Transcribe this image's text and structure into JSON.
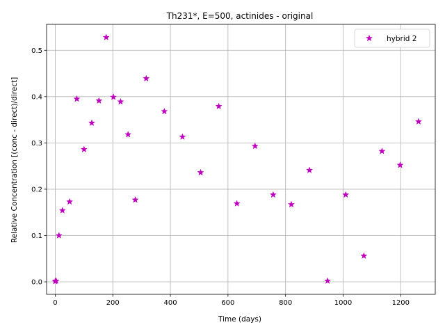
{
  "chart_data": {
    "type": "scatter",
    "title": "Th231*, E=500, actinides - original",
    "xlabel": "Time (days)",
    "ylabel": "Relative Concentration [(conc - direct)/direct]",
    "xlim": [
      -30,
      1320
    ],
    "ylim": [
      -0.027,
      0.556
    ],
    "xticks": [
      0,
      200,
      400,
      600,
      800,
      1000,
      1200
    ],
    "yticks": [
      0.0,
      0.1,
      0.2,
      0.3,
      0.4,
      0.5
    ],
    "xtick_labels": [
      "0",
      "200",
      "400",
      "600",
      "800",
      "1000",
      "1200"
    ],
    "ytick_labels": [
      "0.0",
      "0.1",
      "0.2",
      "0.3",
      "0.4",
      "0.5"
    ],
    "grid": true,
    "legend_position": "top-right",
    "series": [
      {
        "name": "hybrid 2",
        "color": "#bf00bf",
        "marker": "star",
        "x": [
          0,
          3,
          13,
          25,
          50,
          75,
          100,
          127,
          152,
          177,
          202,
          227,
          253,
          278,
          316,
          379,
          442,
          505,
          568,
          631,
          694,
          757,
          820,
          883,
          946,
          1009,
          1072,
          1135,
          1198,
          1262
        ],
        "y": [
          0.001,
          0.002,
          0.1,
          0.154,
          0.173,
          0.395,
          0.286,
          0.343,
          0.391,
          0.528,
          0.399,
          0.389,
          0.318,
          0.177,
          0.439,
          0.368,
          0.313,
          0.236,
          0.379,
          0.169,
          0.293,
          0.188,
          0.167,
          0.241,
          0.002,
          0.188,
          0.056,
          0.282,
          0.252,
          0.346
        ]
      }
    ]
  }
}
